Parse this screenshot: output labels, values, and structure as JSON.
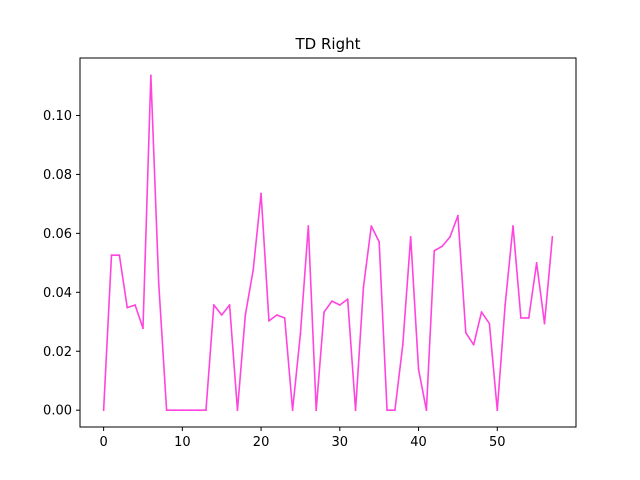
{
  "chart_data": {
    "type": "line",
    "title": "TD Right",
    "xlabel": "",
    "ylabel": "",
    "xlim": [
      -3,
      60
    ],
    "ylim": [
      -0.0057,
      0.1195
    ],
    "x_ticks": [
      0,
      10,
      20,
      30,
      40,
      50
    ],
    "x_tick_labels": [
      "0",
      "10",
      "20",
      "30",
      "40",
      "50"
    ],
    "y_ticks": [
      0.0,
      0.02,
      0.04,
      0.06,
      0.08,
      0.1
    ],
    "y_tick_labels": [
      "0.00",
      "0.02",
      "0.04",
      "0.06",
      "0.08",
      "0.10"
    ],
    "grid": false,
    "legend": "none",
    "series": [
      {
        "color": "#ff44e0",
        "x": [
          0,
          1,
          2,
          3,
          4,
          5,
          6,
          7,
          8,
          9,
          10,
          11,
          12,
          13,
          14,
          15,
          16,
          17,
          18,
          19,
          20,
          21,
          22,
          23,
          24,
          25,
          26,
          27,
          28,
          29,
          30,
          31,
          32,
          33,
          34,
          35,
          36,
          37,
          38,
          39,
          40,
          41,
          42,
          43,
          44,
          45,
          46,
          47,
          48,
          49,
          50,
          51,
          52,
          53,
          54,
          55,
          56,
          57
        ],
        "values": [
          0.0,
          0.0526,
          0.0526,
          0.0348,
          0.0357,
          0.0278,
          0.1136,
          0.043,
          0.0,
          0.0,
          0.0,
          0.0,
          0.0,
          0.0,
          0.0357,
          0.0323,
          0.0357,
          0.0,
          0.0323,
          0.0476,
          0.0735,
          0.0303,
          0.0323,
          0.0313,
          0.0,
          0.026,
          0.0625,
          0.0,
          0.0333,
          0.037,
          0.0357,
          0.0377,
          0.0,
          0.0417,
          0.0625,
          0.0571,
          0.0,
          0.0,
          0.0222,
          0.0588,
          0.0139,
          0.0,
          0.0541,
          0.0556,
          0.0588,
          0.066,
          0.0263,
          0.0222,
          0.0333,
          0.0294,
          0.0,
          0.0357,
          0.0625,
          0.0313,
          0.0313,
          0.05,
          0.0294,
          0.0588
        ]
      }
    ]
  }
}
